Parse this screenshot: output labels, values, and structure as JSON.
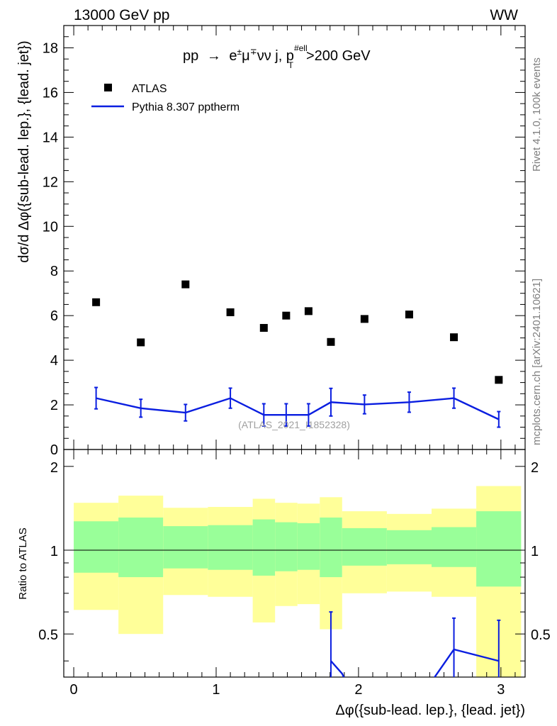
{
  "chart_data": [
    {
      "type": "scatter+line",
      "panel": "main",
      "title": "pp → e±μ∓νν j, pT#ell>200 GeV",
      "title_parts": {
        "prefix": "pp",
        "arrow": "→",
        "process": "e",
        "pm": "±",
        "mu": "μ",
        "mp": "∓",
        "nunu": "νν j, p",
        "sup": "#ell",
        "sub": "T",
        "cut": ">200 GeV"
      },
      "top_left_label": "13000 GeV pp",
      "top_right_label": "WW",
      "xlabel": "Δφ({sub-lead. lep.}, {lead. jet})",
      "ylabel": "dσ/d Δφ({sub-lead. lep.}, {lead. jet})",
      "xlim": [
        -0.07,
        3.17
      ],
      "ylim": [
        0,
        19
      ],
      "yticks": [
        0,
        2,
        4,
        6,
        8,
        10,
        12,
        14,
        16,
        18
      ],
      "yticklabels": [
        "0",
        "2",
        "4",
        "6",
        "8",
        "10",
        "12",
        "14",
        "16",
        "18"
      ],
      "legend": [
        "ATLAS",
        "Pythia 8.307 pptherm"
      ],
      "legend_placement": "top-left",
      "watermark": "(ATLAS_2021_I1852328)",
      "side_label_top": "Rivet 4.1.0,  100k events",
      "side_label_bottom": "mcplots.cern.ch [arXiv:2401.10621]",
      "bin_edges": [
        0,
        0.314,
        0.628,
        0.942,
        1.257,
        1.414,
        1.571,
        1.728,
        1.885,
        2.199,
        2.513,
        2.827,
        3.142
      ],
      "series": [
        {
          "name": "ATLAS",
          "style": "markers",
          "color": "#000000",
          "x": [
            0.157,
            0.471,
            0.785,
            1.1,
            1.335,
            1.492,
            1.649,
            1.806,
            2.042,
            2.356,
            2.67,
            2.985
          ],
          "y": [
            6.6,
            4.8,
            7.4,
            6.15,
            5.45,
            6.0,
            6.2,
            4.82,
            5.85,
            6.05,
            5.03,
            3.12
          ]
        },
        {
          "name": "Pythia 8.307 pptherm",
          "style": "line+errorbars",
          "color": "#0a1ee0",
          "x": [
            0.157,
            0.471,
            0.785,
            1.1,
            1.335,
            1.492,
            1.649,
            1.806,
            2.042,
            2.356,
            2.67,
            2.985
          ],
          "y": [
            2.3,
            1.85,
            1.65,
            2.3,
            1.55,
            1.55,
            1.55,
            2.12,
            2.02,
            2.12,
            2.3,
            1.35
          ],
          "err": [
            0.48,
            0.4,
            0.37,
            0.45,
            0.5,
            0.5,
            0.5,
            0.62,
            0.42,
            0.45,
            0.45,
            0.35
          ]
        }
      ]
    },
    {
      "type": "ratio",
      "panel": "ratio",
      "ylabel": "Ratio to ATLAS",
      "xlim": [
        -0.07,
        3.17
      ],
      "ylim": [
        0.35,
        2.3
      ],
      "xticks": [
        0,
        1,
        2,
        3
      ],
      "xticklabels": [
        "0",
        "1",
        "2",
        "3"
      ],
      "yticks": [
        0.5,
        1,
        2
      ],
      "yticklabels": [
        "0.5",
        "1",
        "2"
      ],
      "reference_line": 1,
      "bands": {
        "bin_edges": [
          0,
          0.314,
          0.628,
          0.942,
          1.257,
          1.414,
          1.571,
          1.728,
          1.885,
          2.199,
          2.513,
          2.827,
          3.142
        ],
        "yellow_low": [
          0.61,
          0.5,
          0.69,
          0.68,
          0.55,
          0.63,
          0.64,
          0.52,
          0.7,
          0.71,
          0.68,
          0.35
        ],
        "yellow_high": [
          1.48,
          1.57,
          1.42,
          1.43,
          1.53,
          1.48,
          1.47,
          1.55,
          1.38,
          1.35,
          1.41,
          1.7
        ],
        "green_low": [
          0.83,
          0.8,
          0.86,
          0.85,
          0.81,
          0.84,
          0.85,
          0.8,
          0.88,
          0.89,
          0.87,
          0.74
        ],
        "green_high": [
          1.27,
          1.31,
          1.22,
          1.23,
          1.29,
          1.26,
          1.25,
          1.31,
          1.2,
          1.18,
          1.21,
          1.38
        ],
        "yellow_color": "#ffff99",
        "green_color": "#99ff99"
      },
      "series": [
        {
          "name": "Pythia 8.307 pptherm",
          "color": "#0a1ee0",
          "segments": [
            {
              "x": [
                1.806,
                1.885,
                1.92
              ],
              "y": [
                0.4,
                0.36,
                0.33
              ]
            },
            {
              "x": [
                2.5,
                2.67,
                2.985
              ],
              "y": [
                0.33,
                0.44,
                0.4
              ]
            }
          ],
          "points": [
            {
              "x": 1.806,
              "y": 0.4,
              "lo": 0.33,
              "hi": 0.6
            },
            {
              "x": 2.67,
              "y": 0.44,
              "lo": 0.33,
              "hi": 0.57
            },
            {
              "x": 2.985,
              "y": 0.4,
              "lo": 0.33,
              "hi": 0.56
            }
          ]
        }
      ]
    }
  ]
}
